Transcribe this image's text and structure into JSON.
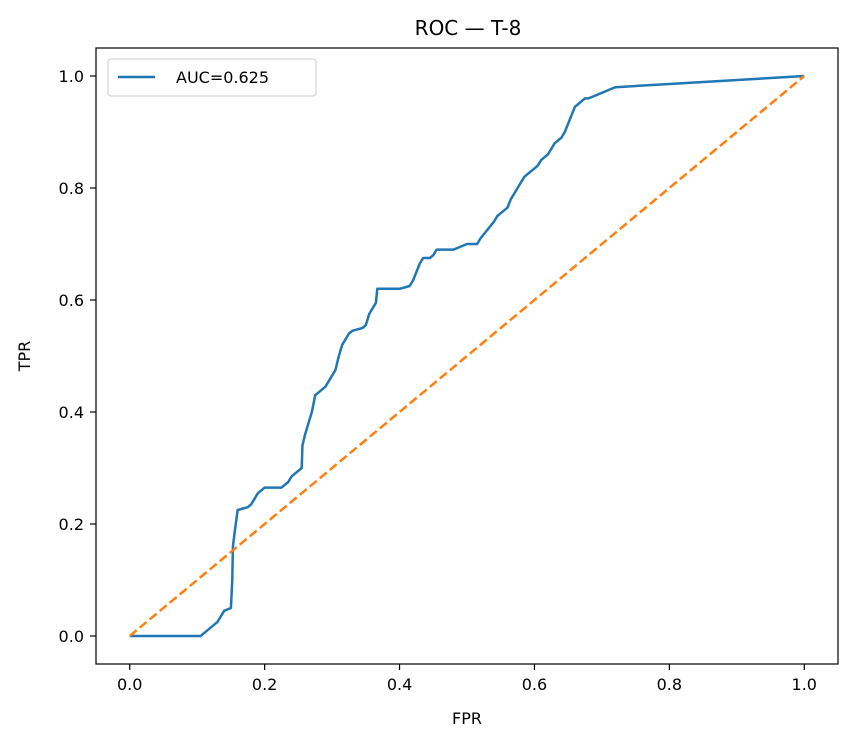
{
  "chart_data": {
    "type": "line",
    "title": "ROC — T-8",
    "xlabel": "FPR",
    "ylabel": "TPR",
    "xlim": [
      -0.05,
      1.05
    ],
    "ylim": [
      -0.05,
      1.05
    ],
    "xticks": [
      "0.0",
      "0.2",
      "0.4",
      "0.6",
      "0.8",
      "1.0"
    ],
    "yticks": [
      "0.0",
      "0.2",
      "0.4",
      "0.6",
      "0.8",
      "1.0"
    ],
    "grid": false,
    "legend_position": "top-left",
    "series": [
      {
        "name": "AUC=0.625",
        "color": "#1f77b4",
        "style": "solid",
        "x": [
          0.0,
          0.105,
          0.11,
          0.115,
          0.12,
          0.125,
          0.13,
          0.135,
          0.14,
          0.15,
          0.152,
          0.153,
          0.155,
          0.16,
          0.175,
          0.18,
          0.185,
          0.19,
          0.195,
          0.2,
          0.225,
          0.23,
          0.235,
          0.24,
          0.245,
          0.25,
          0.255,
          0.256,
          0.26,
          0.265,
          0.27,
          0.275,
          0.28,
          0.285,
          0.29,
          0.295,
          0.3,
          0.305,
          0.31,
          0.315,
          0.32,
          0.325,
          0.33,
          0.345,
          0.35,
          0.355,
          0.36,
          0.365,
          0.367,
          0.4,
          0.415,
          0.42,
          0.425,
          0.43,
          0.435,
          0.445,
          0.45,
          0.455,
          0.48,
          0.5,
          0.515,
          0.52,
          0.53,
          0.54,
          0.545,
          0.55,
          0.555,
          0.56,
          0.565,
          0.57,
          0.575,
          0.58,
          0.585,
          0.59,
          0.6,
          0.605,
          0.61,
          0.615,
          0.62,
          0.625,
          0.63,
          0.635,
          0.64,
          0.645,
          0.65,
          0.655,
          0.66,
          0.665,
          0.67,
          0.675,
          0.68,
          0.69,
          0.7,
          0.71,
          0.72,
          1.0
        ],
        "y": [
          0.0,
          0.0,
          0.005,
          0.01,
          0.015,
          0.02,
          0.025,
          0.035,
          0.045,
          0.05,
          0.1,
          0.16,
          0.18,
          0.225,
          0.23,
          0.235,
          0.245,
          0.255,
          0.26,
          0.265,
          0.265,
          0.27,
          0.275,
          0.285,
          0.29,
          0.295,
          0.3,
          0.34,
          0.36,
          0.38,
          0.4,
          0.43,
          0.435,
          0.44,
          0.445,
          0.455,
          0.465,
          0.475,
          0.5,
          0.52,
          0.53,
          0.54,
          0.545,
          0.55,
          0.555,
          0.575,
          0.585,
          0.595,
          0.62,
          0.62,
          0.625,
          0.635,
          0.65,
          0.665,
          0.675,
          0.675,
          0.68,
          0.69,
          0.69,
          0.7,
          0.7,
          0.71,
          0.725,
          0.74,
          0.75,
          0.755,
          0.76,
          0.765,
          0.78,
          0.79,
          0.8,
          0.81,
          0.82,
          0.825,
          0.835,
          0.84,
          0.85,
          0.855,
          0.86,
          0.87,
          0.88,
          0.885,
          0.89,
          0.9,
          0.915,
          0.93,
          0.945,
          0.95,
          0.955,
          0.96,
          0.96,
          0.965,
          0.97,
          0.975,
          0.98,
          1.0
        ]
      },
      {
        "color": "#ff7f0e",
        "style": "dashed",
        "x": [
          0.0,
          1.0
        ],
        "y": [
          0.0,
          1.0
        ]
      }
    ]
  }
}
